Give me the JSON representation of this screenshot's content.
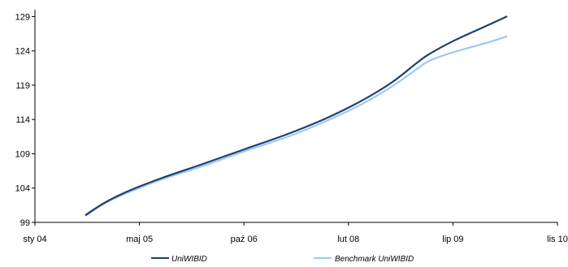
{
  "chart_data": {
    "type": "line",
    "title": "",
    "xlabel": "",
    "ylabel": "",
    "x_ticks": [
      "sty 04",
      "maj 05",
      "paź 06",
      "lut 08",
      "lip 09",
      "lis 10"
    ],
    "y_ticks": [
      "99",
      "104",
      "109",
      "114",
      "119",
      "124",
      "129"
    ],
    "xlim": [
      "2004-01",
      "2010-11"
    ],
    "ylim": [
      99,
      130
    ],
    "grid": "none",
    "legend_position": "bottom",
    "series": [
      {
        "name": "UniWIBID",
        "color": "#1f3f6e",
        "points": [
          [
            "2004-09",
            100.1
          ],
          [
            "2004-12",
            101.9
          ],
          [
            "2005-04",
            103.7
          ],
          [
            "2005-09",
            105.5
          ],
          [
            "2006-03",
            107.4
          ],
          [
            "2006-10",
            109.7
          ],
          [
            "2007-05",
            112.0
          ],
          [
            "2007-11",
            114.3
          ],
          [
            "2008-04",
            116.6
          ],
          [
            "2008-09",
            119.4
          ],
          [
            "2009-01",
            122.3
          ],
          [
            "2009-03",
            123.6
          ],
          [
            "2009-07",
            125.6
          ],
          [
            "2009-12",
            127.7
          ],
          [
            "2010-03",
            129.0
          ]
        ]
      },
      {
        "name": "Benchmark UniWIBID",
        "color": "#9ccaf0",
        "points": [
          [
            "2004-09",
            100.0
          ],
          [
            "2004-12",
            101.8
          ],
          [
            "2005-04",
            103.5
          ],
          [
            "2005-09",
            105.3
          ],
          [
            "2006-03",
            107.1
          ],
          [
            "2006-10",
            109.4
          ],
          [
            "2007-05",
            111.6
          ],
          [
            "2007-11",
            113.9
          ],
          [
            "2008-04",
            116.1
          ],
          [
            "2008-09",
            118.8
          ],
          [
            "2009-01",
            121.4
          ],
          [
            "2009-03",
            122.6
          ],
          [
            "2009-07",
            123.9
          ],
          [
            "2009-12",
            125.2
          ],
          [
            "2010-03",
            126.1
          ]
        ]
      }
    ]
  }
}
